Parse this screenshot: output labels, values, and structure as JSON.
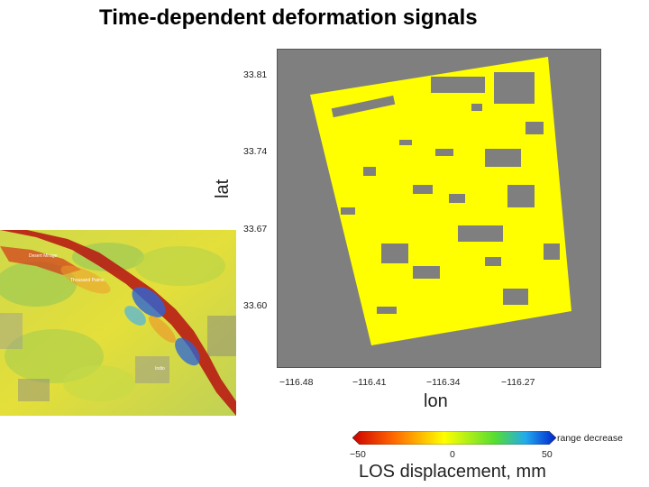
{
  "slide": {
    "title": "Time-dependent deformation signals"
  },
  "deformation_map": {
    "y_ticks": [
      "33.81",
      "33.74",
      "33.67",
      "33.60"
    ],
    "x_ticks": [
      "−116.48",
      "−116.41",
      "−116.34",
      "−116.27"
    ],
    "xlabel": "lon",
    "ylabel": "lat",
    "colors": {
      "background": "#7f7f7f",
      "signal": "#ffff00"
    }
  },
  "colorbar": {
    "min_label": "−50",
    "mid_label": "0",
    "max_label": "50",
    "end_note": "range decrease",
    "title": "LOS displacement, mm",
    "colors": [
      "#cc0000",
      "#ff6600",
      "#ffff00",
      "#55dd33",
      "#22aaee",
      "#0022cc"
    ]
  },
  "inset_map": {
    "place_labels": [
      "Desert Mirage",
      "Thousand Palms",
      "Indio"
    ],
    "colors": {
      "base": "#d8de3a",
      "fault_red": "#b81c14",
      "uplift_blue": "#2a64d8"
    }
  }
}
